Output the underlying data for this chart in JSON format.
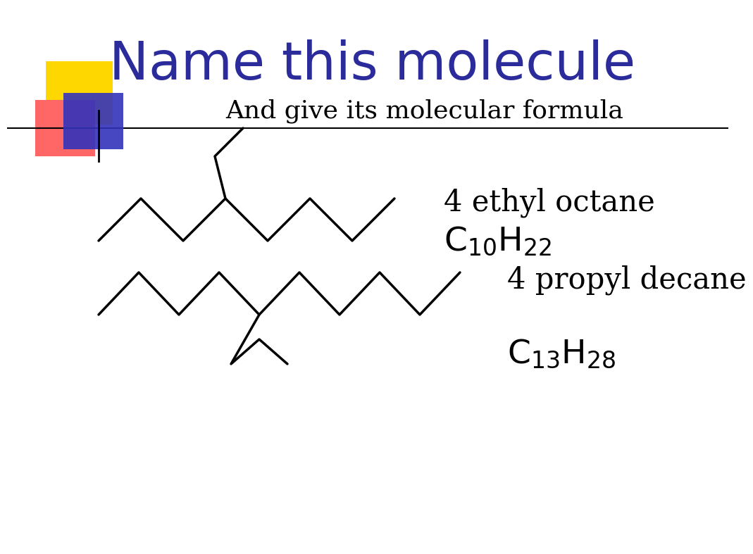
{
  "title": "Name this molecule",
  "subtitle": "And give its molecular formula",
  "title_color": "#2B2B9B",
  "subtitle_color": "#000000",
  "bg_color": "#FFFFFF",
  "line_color": "#000000",
  "line_width": 2.5,
  "mol1_name": "4 ethyl octane",
  "mol1_formula": "$\\mathrm{C_{10}H_{22}}$",
  "mol2_name": "4 propyl decane",
  "mol2_formula": "$\\mathrm{C_{13}H_{28}}$",
  "deco_yellow": "#FFD700",
  "deco_red": "#FF6666",
  "deco_blue": "#3333BB"
}
